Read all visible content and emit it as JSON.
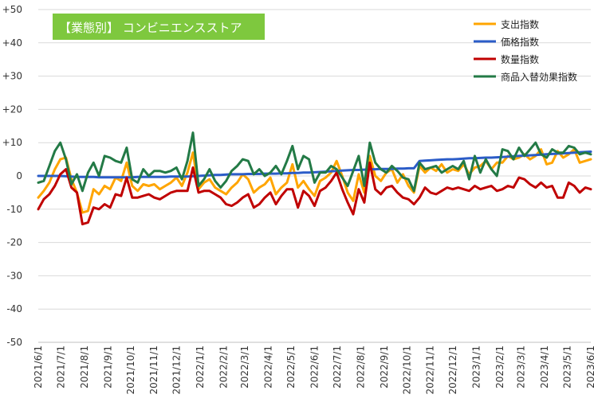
{
  "chart_data": {
    "type": "line",
    "title": "【業態別】 コンビニエンスストア",
    "title_bg": "#7ec83e",
    "xlabel": "",
    "ylabel": "",
    "ylim": [
      -50,
      50
    ],
    "y_ticks": [
      50,
      40,
      30,
      20,
      10,
      0,
      -10,
      -20,
      -30,
      -40,
      -50
    ],
    "y_tick_labels": [
      "+50",
      "+40",
      "+30",
      "+20",
      "+10",
      "0",
      "-10",
      "-20",
      "-30",
      "-40",
      "-50"
    ],
    "x_ticks": [
      "2021/6/1",
      "2021/7/1",
      "2021/8/1",
      "2021/9/1",
      "2021/10/1",
      "2021/11/1",
      "2021/12/1",
      "2022/1/1",
      "2022/2/1",
      "2022/3/1",
      "2022/4/1",
      "2022/5/1",
      "2022/6/1",
      "2022/7/1",
      "2022/8/1",
      "2022/9/1",
      "2022/10/1",
      "2022/11/1",
      "2022/12/1",
      "2023/1/1",
      "2023/2/1",
      "2023/3/1",
      "2023/4/1",
      "2023/5/1",
      "2023/6/1"
    ],
    "x_start": "2021/6/1",
    "x_end": "2023/6/1",
    "grid": true,
    "legend_position": "top-right",
    "series": [
      {
        "name": "支出指数",
        "color": "#ffa500",
        "values": [
          -6.5,
          -4.5,
          -2.0,
          2.0,
          5.0,
          5.5,
          -1.0,
          -5.0,
          -11.0,
          -10.5,
          -4.0,
          -5.5,
          -3.0,
          -4.0,
          -0.5,
          -1.5,
          4.0,
          -3.0,
          -4.5,
          -2.5,
          -3.0,
          -2.5,
          -4.0,
          -3.0,
          -2.0,
          -0.5,
          -3.0,
          1.0,
          7.0,
          -4.0,
          -2.0,
          -1.0,
          -3.5,
          -4.5,
          -5.5,
          -3.5,
          -2.0,
          0.5,
          -1.0,
          -5.0,
          -3.5,
          -2.5,
          -0.5,
          -5.5,
          -3.5,
          -2.0,
          3.5,
          -3.5,
          -1.5,
          -4.0,
          -6.0,
          -1.5,
          -0.5,
          1.0,
          4.5,
          0.0,
          -5.0,
          -7.5,
          0.5,
          -5.0,
          6.0,
          0.0,
          -1.5,
          1.0,
          2.0,
          -2.0,
          0.5,
          -3.0,
          -5.0,
          3.0,
          1.0,
          2.5,
          1.5,
          3.5,
          1.0,
          2.0,
          1.5,
          3.5,
          0.5,
          2.5,
          3.0,
          4.5,
          2.0,
          4.0,
          4.0,
          6.0,
          5.0,
          5.5,
          6.5,
          5.0,
          6.0,
          8.0,
          3.5,
          4.0,
          7.5,
          5.5,
          6.5,
          8.0,
          4.0,
          4.5,
          5.0
        ],
        "legend_y": 0.06
      },
      {
        "name": "価格指数",
        "color": "#2b5cc8",
        "values": [
          0.0,
          0.0,
          0.0,
          0.0,
          0.0,
          -0.1,
          -0.2,
          -0.3,
          -0.3,
          -0.3,
          -0.3,
          -0.4,
          -0.4,
          -0.4,
          -0.4,
          -0.4,
          -0.4,
          -0.4,
          -0.3,
          -0.3,
          -0.3,
          -0.3,
          -0.3,
          -0.3,
          -0.2,
          -0.2,
          -0.2,
          -0.2,
          -0.1,
          0.0,
          0.1,
          0.2,
          0.3,
          0.3,
          0.4,
          0.5,
          0.5,
          0.5,
          0.6,
          0.6,
          0.6,
          0.7,
          0.7,
          0.7,
          0.8,
          0.8,
          0.9,
          0.9,
          1.0,
          1.0,
          1.1,
          1.2,
          1.3,
          1.4,
          1.5,
          1.6,
          1.7,
          1.8,
          1.8,
          1.9,
          2.0,
          2.0,
          2.1,
          2.1,
          2.1,
          2.2,
          2.2,
          2.3,
          2.3,
          4.5,
          4.6,
          4.7,
          4.8,
          4.9,
          5.0,
          5.0,
          5.1,
          5.2,
          5.3,
          5.3,
          5.4,
          5.5,
          5.5,
          5.6,
          5.7,
          5.8,
          5.9,
          6.0,
          6.1,
          6.2,
          6.3,
          6.4,
          6.5,
          6.6,
          6.7,
          6.8,
          6.9,
          7.0,
          7.1,
          7.2,
          7.3
        ],
        "legend_y": 0.38
      },
      {
        "name": "数量指数",
        "color": "#c00000",
        "values": [
          -10.0,
          -7.0,
          -5.5,
          -3.0,
          0.5,
          2.0,
          -3.5,
          -5.0,
          -14.5,
          -14.0,
          -9.5,
          -10.0,
          -8.5,
          -9.5,
          -5.5,
          -6.0,
          -0.5,
          -6.5,
          -6.5,
          -6.0,
          -5.5,
          -6.5,
          -7.0,
          -6.0,
          -5.0,
          -4.5,
          -4.5,
          -4.5,
          2.5,
          -5.0,
          -4.5,
          -4.5,
          -5.5,
          -6.5,
          -8.5,
          -9.0,
          -8.0,
          -6.5,
          -5.5,
          -9.5,
          -8.5,
          -6.5,
          -5.0,
          -8.5,
          -6.0,
          -4.0,
          -4.0,
          -9.5,
          -4.5,
          -6.0,
          -9.0,
          -4.5,
          -3.5,
          -1.5,
          1.0,
          -4.0,
          -8.0,
          -11.5,
          -4.0,
          -8.0,
          4.0,
          -4.0,
          -5.5,
          -3.5,
          -3.0,
          -5.0,
          -6.5,
          -7.0,
          -8.5,
          -6.5,
          -3.5,
          -5.0,
          -5.5,
          -4.5,
          -3.5,
          -4.0,
          -3.5,
          -4.0,
          -4.5,
          -3.0,
          -4.0,
          -3.5,
          -3.0,
          -4.5,
          -4.0,
          -3.0,
          -3.5,
          -0.5,
          -1.0,
          -2.5,
          -3.5,
          -2.0,
          -3.5,
          -3.0,
          -6.5,
          -6.5,
          -2.0,
          -3.0,
          -5.0,
          -3.5,
          -4.0
        ],
        "legend_y": 0.7
      },
      {
        "name": "商品入替効果指数",
        "color": "#237a46",
        "values": [
          -2.0,
          -1.5,
          3.0,
          7.5,
          10.0,
          5.0,
          -2.5,
          0.5,
          -4.5,
          1.0,
          4.0,
          0.0,
          6.0,
          5.5,
          4.5,
          4.0,
          8.5,
          -1.0,
          -2.0,
          2.0,
          0.0,
          1.5,
          1.5,
          1.0,
          1.5,
          2.5,
          -1.0,
          4.5,
          13.0,
          -3.0,
          -1.0,
          2.0,
          -1.5,
          -3.5,
          -1.5,
          1.5,
          3.0,
          5.0,
          4.5,
          0.5,
          2.0,
          0.0,
          1.0,
          3.0,
          0.5,
          4.5,
          9.0,
          2.0,
          6.0,
          5.0,
          -2.0,
          1.0,
          1.0,
          3.0,
          2.0,
          -0.5,
          -3.0,
          1.5,
          6.0,
          -3.0,
          10.0,
          4.0,
          2.0,
          1.0,
          3.0,
          1.5,
          -0.5,
          -1.0,
          -4.5,
          4.0,
          2.0,
          2.5,
          3.0,
          1.0,
          2.0,
          3.0,
          2.0,
          4.5,
          -1.0,
          6.0,
          1.0,
          5.0,
          2.0,
          0.0,
          8.0,
          7.5,
          5.0,
          8.5,
          6.0,
          8.0,
          10.0,
          6.5,
          5.5,
          8.0,
          7.0,
          7.0,
          9.0,
          8.5,
          6.5,
          7.0,
          6.5
        ],
        "legend_y": 1.0
      }
    ]
  }
}
